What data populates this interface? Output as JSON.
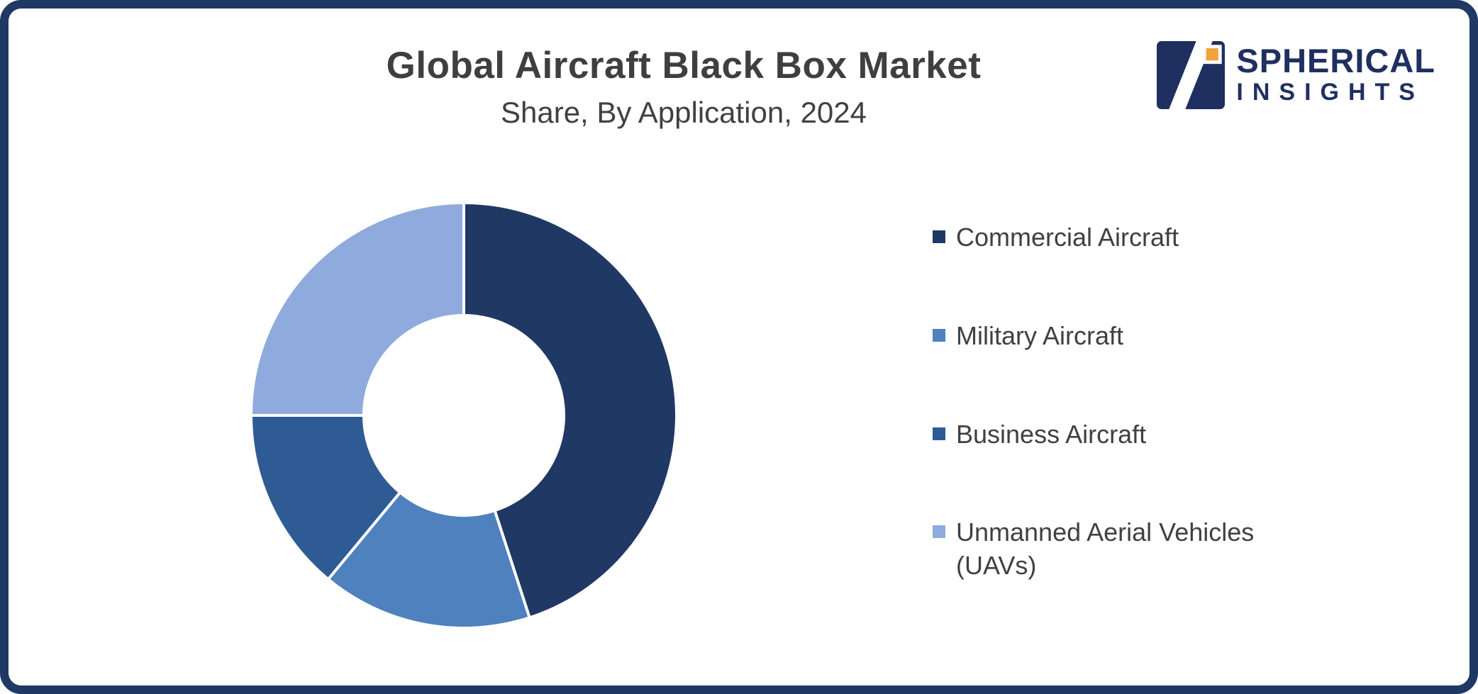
{
  "frame": {
    "border_color": "#203864"
  },
  "header": {
    "title": "Global Aircraft Black Box Market",
    "subtitle": "Share, By Application, 2024"
  },
  "logo": {
    "line1": "SPHERICAL",
    "line2": "INSIGHTS",
    "navy": "#1F3060",
    "orange": "#F2A23B"
  },
  "chart_data": {
    "type": "pie",
    "donut": true,
    "title": "Global Aircraft Black Box Market Share, By Application, 2024",
    "start_angle_deg": 0,
    "direction": "clockwise",
    "categories": [
      "Commercial Aircraft",
      "Military Aircraft",
      "Business Aircraft",
      "Unmanned Aerial Vehicles (UAVs)"
    ],
    "values": [
      45,
      16,
      14,
      25
    ],
    "unit": "percent (estimated from arc angles)",
    "colors": [
      "#203864",
      "#4E81BD",
      "#2F5B95",
      "#8FAADC"
    ],
    "legend_position": "right",
    "inner_radius_ratio": 0.47
  },
  "legend": {
    "items": [
      {
        "label": "Commercial Aircraft",
        "color": "#203864"
      },
      {
        "label": "Military Aircraft",
        "color": "#4E81BD"
      },
      {
        "label": "Business Aircraft",
        "color": "#2F5B95"
      },
      {
        "label": "Unmanned Aerial Vehicles (UAVs)",
        "color": "#8FAADC"
      }
    ]
  }
}
